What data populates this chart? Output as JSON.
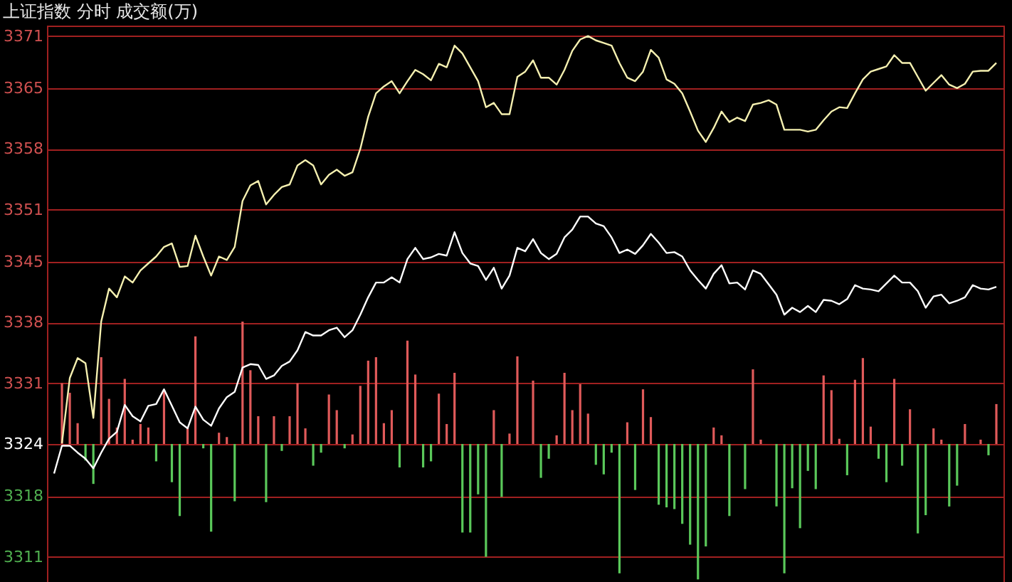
{
  "chart_data": {
    "type": "line",
    "title": "上证指数 分时 成交额(万)",
    "categories": [
      null,
      null,
      null,
      null,
      null,
      null,
      null,
      null,
      null,
      null,
      null,
      null,
      null,
      null,
      null,
      null,
      null,
      null,
      null,
      null,
      null,
      null,
      null,
      null,
      null,
      null,
      null,
      null,
      null,
      null,
      null,
      null,
      null,
      null,
      null,
      null,
      null,
      null,
      null,
      null,
      null,
      null,
      null,
      null,
      null,
      null,
      null,
      null,
      null,
      null,
      null,
      null,
      null,
      null,
      null,
      null,
      null,
      null,
      null,
      null,
      null,
      null,
      null,
      null,
      null,
      null,
      null,
      null,
      null,
      null,
      null,
      null,
      null,
      null,
      null,
      null,
      null,
      null,
      null,
      null,
      null,
      null,
      null,
      null,
      null,
      null,
      null,
      null,
      null,
      null,
      null,
      null,
      null,
      null,
      null,
      null,
      null,
      null,
      null,
      null,
      null,
      null,
      null,
      null,
      null,
      null,
      null,
      null,
      null,
      null,
      null,
      null,
      null,
      null,
      null,
      null,
      null,
      null,
      null,
      null,
      null
    ],
    "ylim": [
      3308.1,
      3372.2
    ],
    "yticks": [
      3311,
      3318,
      3324,
      3331,
      3338,
      3345,
      3351,
      3358,
      3365,
      3371
    ],
    "tick_labels": "y",
    "grid": "y",
    "series": [
      {
        "type": "bar",
        "values": [
          null,
          7.0,
          5.9,
          2.4,
          -1.9,
          -4.6,
          10.0,
          5.2,
          1.9,
          7.5,
          0.5,
          2.3,
          1.9,
          -2.0,
          6.2,
          -4.4,
          -8.3,
          1.9,
          12.4,
          -0.5,
          -10.1,
          1.3,
          0.8,
          -6.6,
          14.1,
          8.5,
          3.2,
          -6.7,
          3.2,
          -0.8,
          3.2,
          7.0,
          1.8,
          -2.5,
          -1.0,
          5.7,
          3.9,
          -0.5,
          1.1,
          6.7,
          9.6,
          10.0,
          2.4,
          3.9,
          -2.7,
          11.9,
          8.0,
          -2.7,
          -2.0,
          5.8,
          2.3,
          8.2,
          -10.2,
          -10.2,
          -5.8,
          -13.0,
          3.9,
          -6.1,
          1.2,
          10.1,
          null,
          7.3,
          -3.9,
          -1.7,
          1.0,
          8.2,
          3.9,
          6.9,
          3.5,
          -2.4,
          -3.5,
          -1.0,
          -14.9,
          2.5,
          -5.3,
          6.3,
          3.1,
          -7.0,
          -7.3,
          -7.5,
          -9.2,
          -11.6,
          -15.6,
          -11.8,
          1.9,
          1.0,
          -8.3,
          null,
          -5.2,
          8.6,
          0.5,
          null,
          -7.2,
          -14.9,
          -5.1,
          -9.7,
          -3.1,
          -5.2,
          7.9,
          6.2,
          0.6,
          -3.6,
          7.4,
          9.9,
          2.0,
          -1.7,
          -4.4,
          7.5,
          -2.5,
          4.0,
          -10.3,
          -8.2,
          1.8,
          0.5,
          -7.2,
          -4.8,
          2.3,
          null,
          0.5,
          -1.3,
          4.6
        ],
        "base": [
          null,
          3324,
          3324,
          3324,
          3324,
          3324,
          3324,
          3324,
          3324,
          3324,
          3324,
          3324,
          3324,
          3324,
          3324,
          3324,
          3324,
          3324,
          3324,
          3324,
          3324,
          3324,
          3324,
          3324,
          3324,
          3324,
          3324,
          3324,
          3324,
          3324,
          3324,
          3324,
          3324,
          3324,
          3324,
          3324,
          3324,
          3324,
          3324,
          3324,
          3324,
          3324,
          3324,
          3324,
          3324,
          3324,
          3324,
          3324,
          3324,
          3324,
          3324,
          3324,
          3324,
          3324,
          3324,
          3324,
          3324,
          3324,
          3324,
          3324,
          null,
          3324,
          3324,
          3324,
          3324,
          3324,
          3324,
          3324,
          3324,
          3324,
          3324,
          3324,
          3324,
          3324,
          3324,
          3324,
          3324,
          3324,
          3324,
          3324,
          3324,
          3324,
          3324,
          3324,
          3324,
          3324,
          3324,
          null,
          3324,
          3324,
          3324,
          null,
          3324,
          3324,
          3324,
          3324,
          3324,
          3324,
          3324,
          3324,
          3324,
          3324,
          3324,
          3324,
          3324,
          3324,
          3324,
          3324,
          3324,
          3324,
          3324,
          3324,
          3324,
          3324,
          3324,
          3324,
          3324,
          null,
          3324,
          3324,
          3324
        ],
        "colors": [
          null,
          "#e05a5a",
          "#e05a5a",
          "#e05a5a",
          "#5ac85a",
          "#5ac85a",
          "#e05a5a",
          "#e05a5a",
          "#e05a5a",
          "#e05a5a",
          "#e05a5a",
          "#e05a5a",
          "#e05a5a",
          "#5ac85a",
          "#e05a5a",
          "#5ac85a",
          "#5ac85a",
          "#e05a5a",
          "#e05a5a",
          "#5ac85a",
          "#5ac85a",
          "#e05a5a",
          "#e05a5a",
          "#5ac85a",
          "#e05a5a",
          "#e05a5a",
          "#e05a5a",
          "#5ac85a",
          "#e05a5a",
          "#5ac85a",
          "#e05a5a",
          "#e05a5a",
          "#e05a5a",
          "#5ac85a",
          "#5ac85a",
          "#e05a5a",
          "#e05a5a",
          "#5ac85a",
          "#e05a5a",
          "#e05a5a",
          "#e05a5a",
          "#e05a5a",
          "#e05a5a",
          "#e05a5a",
          "#5ac85a",
          "#e05a5a",
          "#e05a5a",
          "#5ac85a",
          "#5ac85a",
          "#e05a5a",
          "#e05a5a",
          "#e05a5a",
          "#5ac85a",
          "#5ac85a",
          "#5ac85a",
          "#5ac85a",
          "#e05a5a",
          "#5ac85a",
          "#e05a5a",
          "#e05a5a",
          null,
          "#e05a5a",
          "#5ac85a",
          "#5ac85a",
          "#e05a5a",
          "#e05a5a",
          "#e05a5a",
          "#e05a5a",
          "#e05a5a",
          "#5ac85a",
          "#5ac85a",
          "#5ac85a",
          "#5ac85a",
          "#e05a5a",
          "#5ac85a",
          "#e05a5a",
          "#e05a5a",
          "#5ac85a",
          "#5ac85a",
          "#5ac85a",
          "#5ac85a",
          "#5ac85a",
          "#5ac85a",
          "#5ac85a",
          "#e05a5a",
          "#e05a5a",
          "#5ac85a",
          null,
          "#5ac85a",
          "#e05a5a",
          "#e05a5a",
          null,
          "#5ac85a",
          "#5ac85a",
          "#5ac85a",
          "#5ac85a",
          "#5ac85a",
          "#5ac85a",
          "#e05a5a",
          "#e05a5a",
          "#e05a5a",
          "#5ac85a",
          "#e05a5a",
          "#e05a5a",
          "#e05a5a",
          "#5ac85a",
          "#5ac85a",
          "#e05a5a",
          "#5ac85a",
          "#e05a5a",
          "#5ac85a",
          "#5ac85a",
          "#e05a5a",
          "#e05a5a",
          "#5ac85a",
          "#5ac85a",
          "#e05a5a",
          null,
          "#e05a5a",
          "#5ac85a",
          "#e05a5a"
        ]
      },
      {
        "color": "#ffffff",
        "values": [
          3320.6,
          3323.8,
          3323.8,
          3323.0,
          3322.3,
          3321.2,
          3323.0,
          3324.6,
          3325.4,
          3328.5,
          3327.2,
          3326.6,
          3328.4,
          3328.6,
          3330.3,
          3328.4,
          3326.5,
          3325.8,
          3328.3,
          3326.8,
          3326.1,
          3328.1,
          3329.4,
          3330.0,
          3332.8,
          3333.2,
          3333.1,
          3331.5,
          3331.9,
          3333.0,
          3333.5,
          3334.8,
          3336.9,
          3336.5,
          3336.5,
          3337.1,
          3337.4,
          3336.3,
          3337.1,
          3338.9,
          3340.9,
          3342.6,
          3342.6,
          3343.2,
          3342.6,
          3345.3,
          3346.6,
          3345.3,
          3345.5,
          3345.9,
          3345.7,
          3348.4,
          3346.0,
          3344.8,
          3344.5,
          3342.9,
          3344.3,
          3341.9,
          3343.4,
          3346.6,
          3346.2,
          3347.6,
          3346.0,
          3345.3,
          3345.9,
          3347.8,
          3348.7,
          3350.2,
          3350.2,
          3349.4,
          3349.1,
          3347.8,
          3346.0,
          3346.4,
          3345.9,
          3346.9,
          3348.2,
          3347.2,
          3346.0,
          3346.1,
          3345.6,
          3344.0,
          3342.9,
          3341.9,
          3343.6,
          3344.6,
          3342.5,
          3342.6,
          3341.8,
          3344.0,
          3343.6,
          3342.4,
          3341.2,
          3338.9,
          3339.7,
          3339.2,
          3339.9,
          3339.2,
          3340.6,
          3340.5,
          3340.1,
          3340.7,
          3342.3,
          3341.9,
          3341.8,
          3341.6,
          3342.5,
          3343.4,
          3342.6,
          3342.6,
          3341.6,
          3339.7,
          3341.0,
          3341.2,
          3340.2,
          3340.5,
          3340.9,
          3342.3,
          3341.9,
          3341.8,
          3342.1
        ]
      },
      {
        "color": "#f5f0b0",
        "values": [
          null,
          3324.1,
          3331.6,
          3333.9,
          3333.3,
          3327.0,
          3338.1,
          3341.9,
          3340.9,
          3343.3,
          3342.6,
          3344.0,
          3344.8,
          3345.6,
          3346.7,
          3347.1,
          3344.4,
          3344.5,
          3348.0,
          3345.6,
          3343.4,
          3345.6,
          3345.2,
          3346.7,
          3352.0,
          3353.8,
          3354.3,
          3351.6,
          3352.7,
          3353.6,
          3353.9,
          3356.1,
          3356.7,
          3356.1,
          3353.9,
          3355.0,
          3355.6,
          3354.9,
          3355.3,
          3358.0,
          3361.7,
          3364.4,
          3365.2,
          3365.8,
          3364.4,
          3365.8,
          3367.1,
          3366.6,
          3365.9,
          3367.8,
          3367.4,
          3369.9,
          3369.0,
          3367.4,
          3365.8,
          3362.8,
          3363.3,
          3362.0,
          3362.0,
          3366.3,
          3366.9,
          3368.2,
          3366.2,
          3366.2,
          3365.4,
          3367.1,
          3369.3,
          3370.6,
          3371.0,
          3370.5,
          3370.2,
          3369.9,
          3367.9,
          3366.2,
          3365.8,
          3366.9,
          3369.4,
          3368.5,
          3366.0,
          3365.5,
          3364.4,
          3362.3,
          3360.1,
          3358.8,
          3360.4,
          3362.3,
          3361.1,
          3361.6,
          3361.2,
          3363.1,
          3363.3,
          3363.6,
          3363.1,
          3360.2,
          3360.2,
          3360.2,
          3360.0,
          3360.2,
          3361.3,
          3362.3,
          3362.8,
          3362.7,
          3364.4,
          3366.0,
          3366.9,
          3367.2,
          3367.5,
          3368.8,
          3367.9,
          3367.9,
          3366.3,
          3364.7,
          3365.6,
          3366.5,
          3365.4,
          3365.0,
          3365.5,
          3366.9,
          3367.0,
          3367.0,
          3367.9
        ]
      }
    ]
  }
}
